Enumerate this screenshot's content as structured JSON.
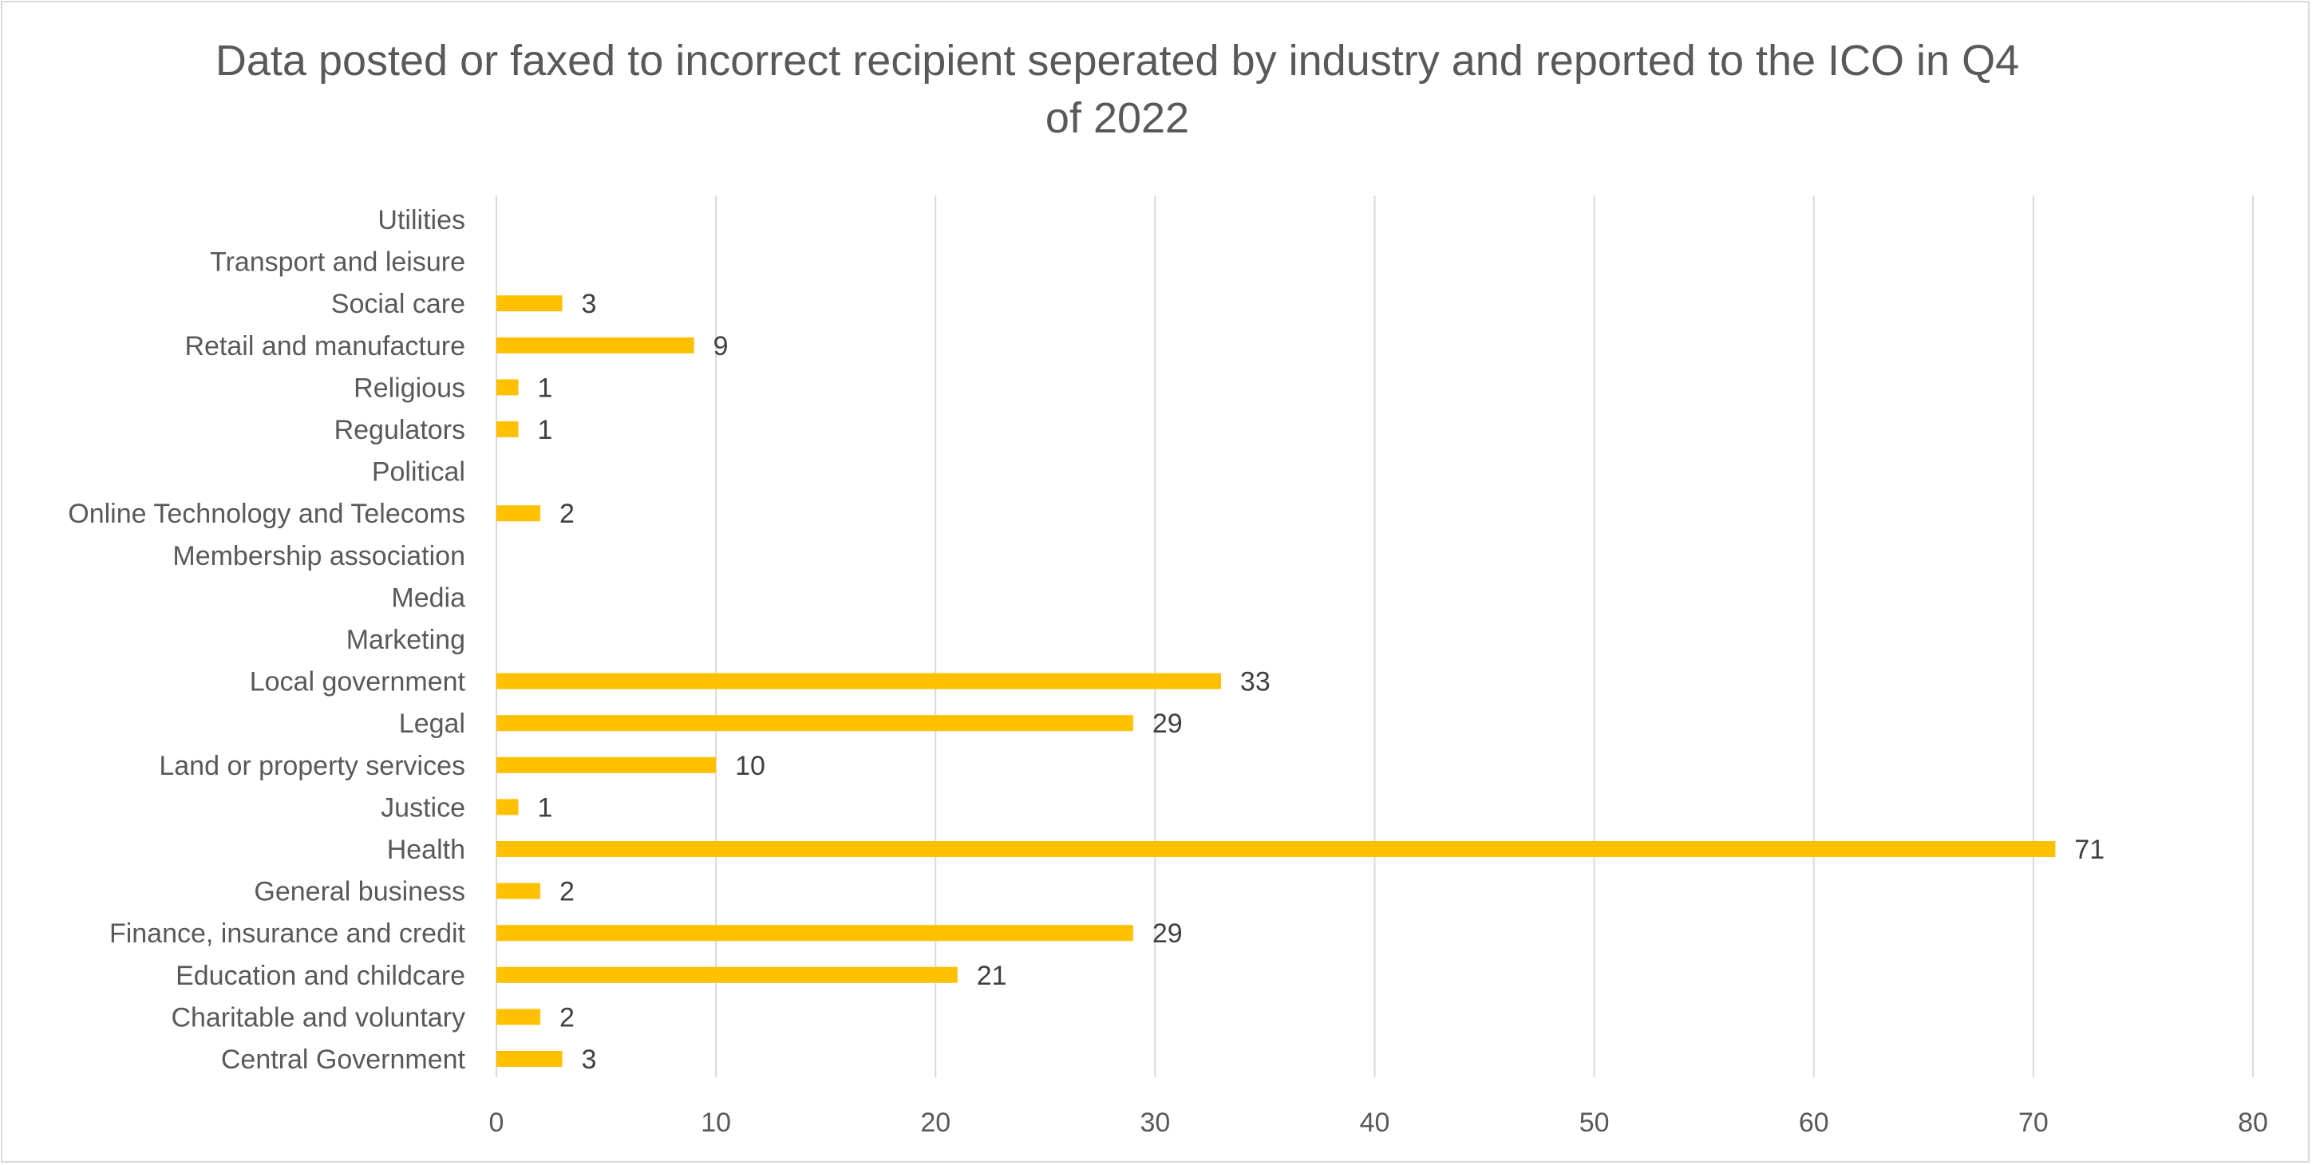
{
  "chart_data": {
    "type": "bar",
    "orientation": "horizontal",
    "title": "Data posted or faxed to incorrect recipient seperated by industry and reported to the ICO in Q4 of 2022",
    "xlabel": "",
    "ylabel": "",
    "xlim": [
      0,
      80
    ],
    "xticks": [
      0,
      10,
      20,
      30,
      40,
      50,
      60,
      70,
      80
    ],
    "grid": "vertical",
    "bar_color": "#FFC000",
    "categories": [
      "Central Government",
      "Charitable and voluntary",
      "Education and childcare",
      "Finance, insurance and credit",
      "General business",
      "Health",
      "Justice",
      "Land or property services",
      "Legal",
      "Local government",
      "Marketing",
      "Media",
      "Membership association",
      "Online Technology and Telecoms",
      "Political",
      "Regulators",
      "Religious",
      "Retail and manufacture",
      "Social care",
      "Transport and leisure",
      "Utilities"
    ],
    "values": [
      3,
      2,
      21,
      29,
      2,
      71,
      1,
      10,
      29,
      33,
      null,
      null,
      null,
      2,
      null,
      1,
      1,
      9,
      3,
      null,
      null
    ]
  }
}
